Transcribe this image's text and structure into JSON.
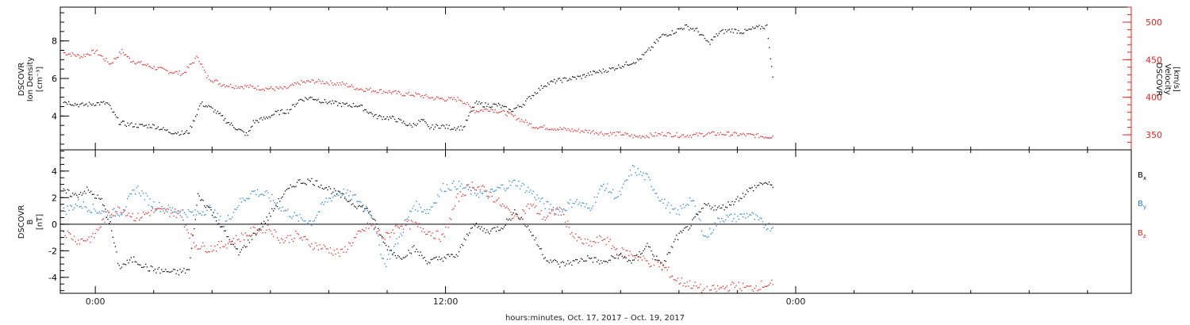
{
  "xlabel": "hours:minutes, Oct. 17, 2017 – Oct. 19, 2017",
  "chart_data": [
    {
      "type": "scatter",
      "panel": "top",
      "title": "",
      "xlabel": "hours:minutes, Oct. 17, 2017 – Oct. 19, 2017",
      "ylabel": [
        "DSCOVR",
        "Ion Density",
        "[cm⁻³]"
      ],
      "y2label": [
        "DSCOVR",
        "Velocity",
        "[km/s]"
      ],
      "x_tick_labels": [
        "0:00",
        "12:00",
        "0:00"
      ],
      "x_tick_hours": [
        0,
        12,
        24
      ],
      "xlim_hours": [
        -1.2,
        35.5
      ],
      "ylim": [
        2.2,
        9.8
      ],
      "y_ticks": [
        4,
        6,
        8
      ],
      "y2lim": [
        330,
        520
      ],
      "y2_ticks": [
        350,
        400,
        450,
        500
      ],
      "grid": false,
      "series": [
        {
          "axis": "left",
          "color": "#000000",
          "x_hours": [
            -1.1,
            -0.5,
            0.0,
            0.4,
            0.8,
            1.0,
            1.5,
            2.0,
            2.5,
            3.0,
            3.2,
            3.6,
            4.0,
            4.6,
            5.2,
            5.4,
            5.8,
            6.2,
            6.6,
            7.0,
            7.4,
            7.8,
            8.2,
            8.6,
            9.0,
            9.6,
            10.2,
            10.8,
            11.2,
            11.4,
            11.8,
            12.2,
            12.6,
            13.0,
            13.4,
            13.8,
            14.2,
            14.6,
            15.0,
            15.4,
            15.8,
            16.2,
            16.6,
            17.0,
            17.6,
            18.0,
            18.6,
            19.0,
            19.4,
            19.8,
            20.2,
            20.6,
            21.0,
            21.4,
            21.8,
            22.2,
            22.6,
            23.0,
            23.2
          ],
          "values": [
            4.8,
            4.6,
            4.7,
            4.7,
            3.7,
            3.6,
            3.5,
            3.5,
            3.2,
            3.1,
            3.2,
            4.7,
            4.4,
            3.6,
            3.0,
            3.7,
            3.9,
            4.2,
            4.3,
            4.9,
            5.0,
            4.8,
            4.7,
            4.6,
            4.6,
            4.0,
            3.9,
            3.5,
            3.8,
            3.4,
            3.5,
            3.4,
            3.4,
            4.7,
            4.6,
            4.6,
            4.3,
            4.6,
            5.2,
            5.7,
            5.9,
            6.0,
            6.1,
            6.3,
            6.5,
            6.7,
            7.0,
            7.6,
            8.3,
            8.5,
            8.8,
            8.6,
            7.9,
            8.5,
            8.6,
            8.5,
            8.7,
            8.8,
            6.1
          ]
        },
        {
          "axis": "right",
          "color": "#e8231f",
          "x_hours": [
            -1.1,
            -0.5,
            0.0,
            0.5,
            0.9,
            1.2,
            1.6,
            2.0,
            2.5,
            3.0,
            3.5,
            3.8,
            4.3,
            4.8,
            5.2,
            5.6,
            6.0,
            6.5,
            7.0,
            7.5,
            8.0,
            8.5,
            9.0,
            9.5,
            10.0,
            10.5,
            11.0,
            11.5,
            12.0,
            12.5,
            13.0,
            13.5,
            14.0,
            14.5,
            15.0,
            15.5,
            16.0,
            16.5,
            17.0,
            17.5,
            18.0,
            18.5,
            19.0,
            19.5,
            20.0,
            20.5,
            21.0,
            21.5,
            22.0,
            22.5,
            23.0,
            23.2
          ],
          "values": [
            460,
            455,
            462,
            445,
            462,
            450,
            445,
            440,
            435,
            432,
            455,
            428,
            418,
            415,
            415,
            413,
            412,
            412,
            420,
            422,
            420,
            418,
            412,
            410,
            408,
            405,
            404,
            400,
            398,
            398,
            382,
            385,
            380,
            372,
            362,
            360,
            358,
            356,
            355,
            352,
            352,
            348,
            350,
            352,
            350,
            350,
            352,
            352,
            351,
            350,
            348,
            349
          ]
        }
      ]
    },
    {
      "type": "scatter",
      "panel": "bottom",
      "title": "",
      "ylabel": [
        "DSCOVR",
        "B",
        "[nT]"
      ],
      "x_tick_labels": [
        "0:00",
        "12:00",
        "0:00"
      ],
      "x_tick_hours": [
        0,
        12,
        24
      ],
      "xlim_hours": [
        -1.2,
        35.5
      ],
      "ylim": [
        -5.2,
        5.6
      ],
      "y_ticks": [
        -4,
        -2,
        0,
        2,
        4
      ],
      "zero_line": true,
      "grid": false,
      "legend_placement": "right",
      "series": [
        {
          "name": "Bx",
          "color": "#000000",
          "x_hours": [
            -1.1,
            -0.7,
            -0.3,
            0.2,
            0.5,
            0.8,
            1.3,
            1.8,
            2.3,
            2.8,
            3.2,
            3.5,
            3.9,
            4.4,
            4.9,
            5.4,
            5.9,
            6.4,
            6.9,
            7.4,
            7.9,
            8.4,
            8.9,
            9.4,
            9.9,
            10.4,
            10.9,
            11.4,
            11.9,
            12.4,
            12.9,
            13.4,
            13.9,
            14.4,
            14.9,
            15.4,
            15.9,
            16.4,
            16.9,
            17.4,
            17.9,
            18.4,
            18.9,
            19.4,
            19.9,
            20.4,
            20.9,
            21.4,
            21.9,
            22.4,
            22.9,
            23.2
          ],
          "values": [
            2.5,
            2.2,
            2.6,
            1.8,
            0.0,
            -3.2,
            -2.6,
            -3.3,
            -3.5,
            -3.6,
            -3.4,
            2.2,
            1.2,
            -0.5,
            -2.2,
            -0.8,
            0.5,
            2.2,
            3.2,
            3.3,
            2.8,
            2.2,
            1.5,
            1.0,
            -1.5,
            -2.5,
            -1.8,
            -2.8,
            -2.5,
            -2.3,
            0.0,
            -0.5,
            -0.2,
            1.0,
            -0.5,
            -2.5,
            -3.0,
            -2.8,
            -2.5,
            -2.9,
            -2.3,
            -2.8,
            -1.5,
            -3.2,
            -1.0,
            0.0,
            1.5,
            1.2,
            1.8,
            2.6,
            3.2,
            2.8
          ]
        },
        {
          "name": "By",
          "color": "#1e7fd6",
          "x_hours": [
            -1.1,
            -0.6,
            -0.1,
            0.4,
            0.9,
            1.4,
            1.9,
            2.4,
            2.9,
            3.4,
            3.9,
            4.4,
            4.9,
            5.4,
            5.9,
            6.4,
            6.9,
            7.4,
            7.9,
            8.4,
            8.9,
            9.4,
            9.9,
            10.4,
            10.9,
            11.4,
            11.9,
            12.4,
            12.9,
            13.4,
            13.9,
            14.4,
            14.9,
            15.4,
            15.9,
            16.4,
            16.9,
            17.4,
            17.9,
            18.4,
            18.9,
            19.4,
            19.9,
            20.4,
            20.9,
            21.4,
            21.9,
            22.4,
            22.9,
            23.2
          ],
          "values": [
            1.0,
            1.6,
            1.2,
            0.8,
            1.0,
            2.8,
            1.6,
            1.2,
            1.0,
            0.8,
            1.2,
            0.0,
            1.6,
            2.5,
            2.2,
            1.2,
            0.5,
            0.2,
            1.8,
            2.5,
            2.0,
            1.0,
            -3.0,
            -1.0,
            1.5,
            1.0,
            2.8,
            3.0,
            2.5,
            2.2,
            2.8,
            3.2,
            2.5,
            1.5,
            1.0,
            1.8,
            1.2,
            3.0,
            2.0,
            4.2,
            3.5,
            1.8,
            0.8,
            2.0,
            -1.0,
            0.5,
            0.5,
            0.8,
            0.0,
            -0.2
          ]
        },
        {
          "name": "Bz",
          "color": "#e8231f",
          "x_hours": [
            -1.1,
            -0.6,
            -0.1,
            0.4,
            0.9,
            1.4,
            1.9,
            2.4,
            2.9,
            3.4,
            3.9,
            4.4,
            4.9,
            5.4,
            5.9,
            6.4,
            6.9,
            7.4,
            7.9,
            8.4,
            8.9,
            9.4,
            9.9,
            10.4,
            10.9,
            11.4,
            11.9,
            12.4,
            12.9,
            13.4,
            13.9,
            14.4,
            14.9,
            15.4,
            15.9,
            16.4,
            16.9,
            17.4,
            17.9,
            18.4,
            18.9,
            19.4,
            19.9,
            20.4,
            20.9,
            21.4,
            21.9,
            22.4,
            22.9,
            23.2
          ],
          "values": [
            -0.5,
            -1.2,
            -1.0,
            0.8,
            1.2,
            0.5,
            1.0,
            1.0,
            0.8,
            -1.5,
            -1.8,
            -1.5,
            -1.0,
            -0.5,
            -0.2,
            -1.2,
            -0.8,
            -1.5,
            -1.8,
            -2.2,
            -1.0,
            0.0,
            -1.0,
            0.0,
            0.0,
            -0.5,
            -1.0,
            2.0,
            3.0,
            2.5,
            1.5,
            0.5,
            1.5,
            0.5,
            1.2,
            -1.0,
            -1.5,
            -1.0,
            -2.0,
            -2.2,
            -2.8,
            -3.0,
            -4.2,
            -4.5,
            -5.0,
            -4.8,
            -4.6,
            -4.8,
            -4.5,
            -4.5
          ]
        }
      ]
    }
  ]
}
